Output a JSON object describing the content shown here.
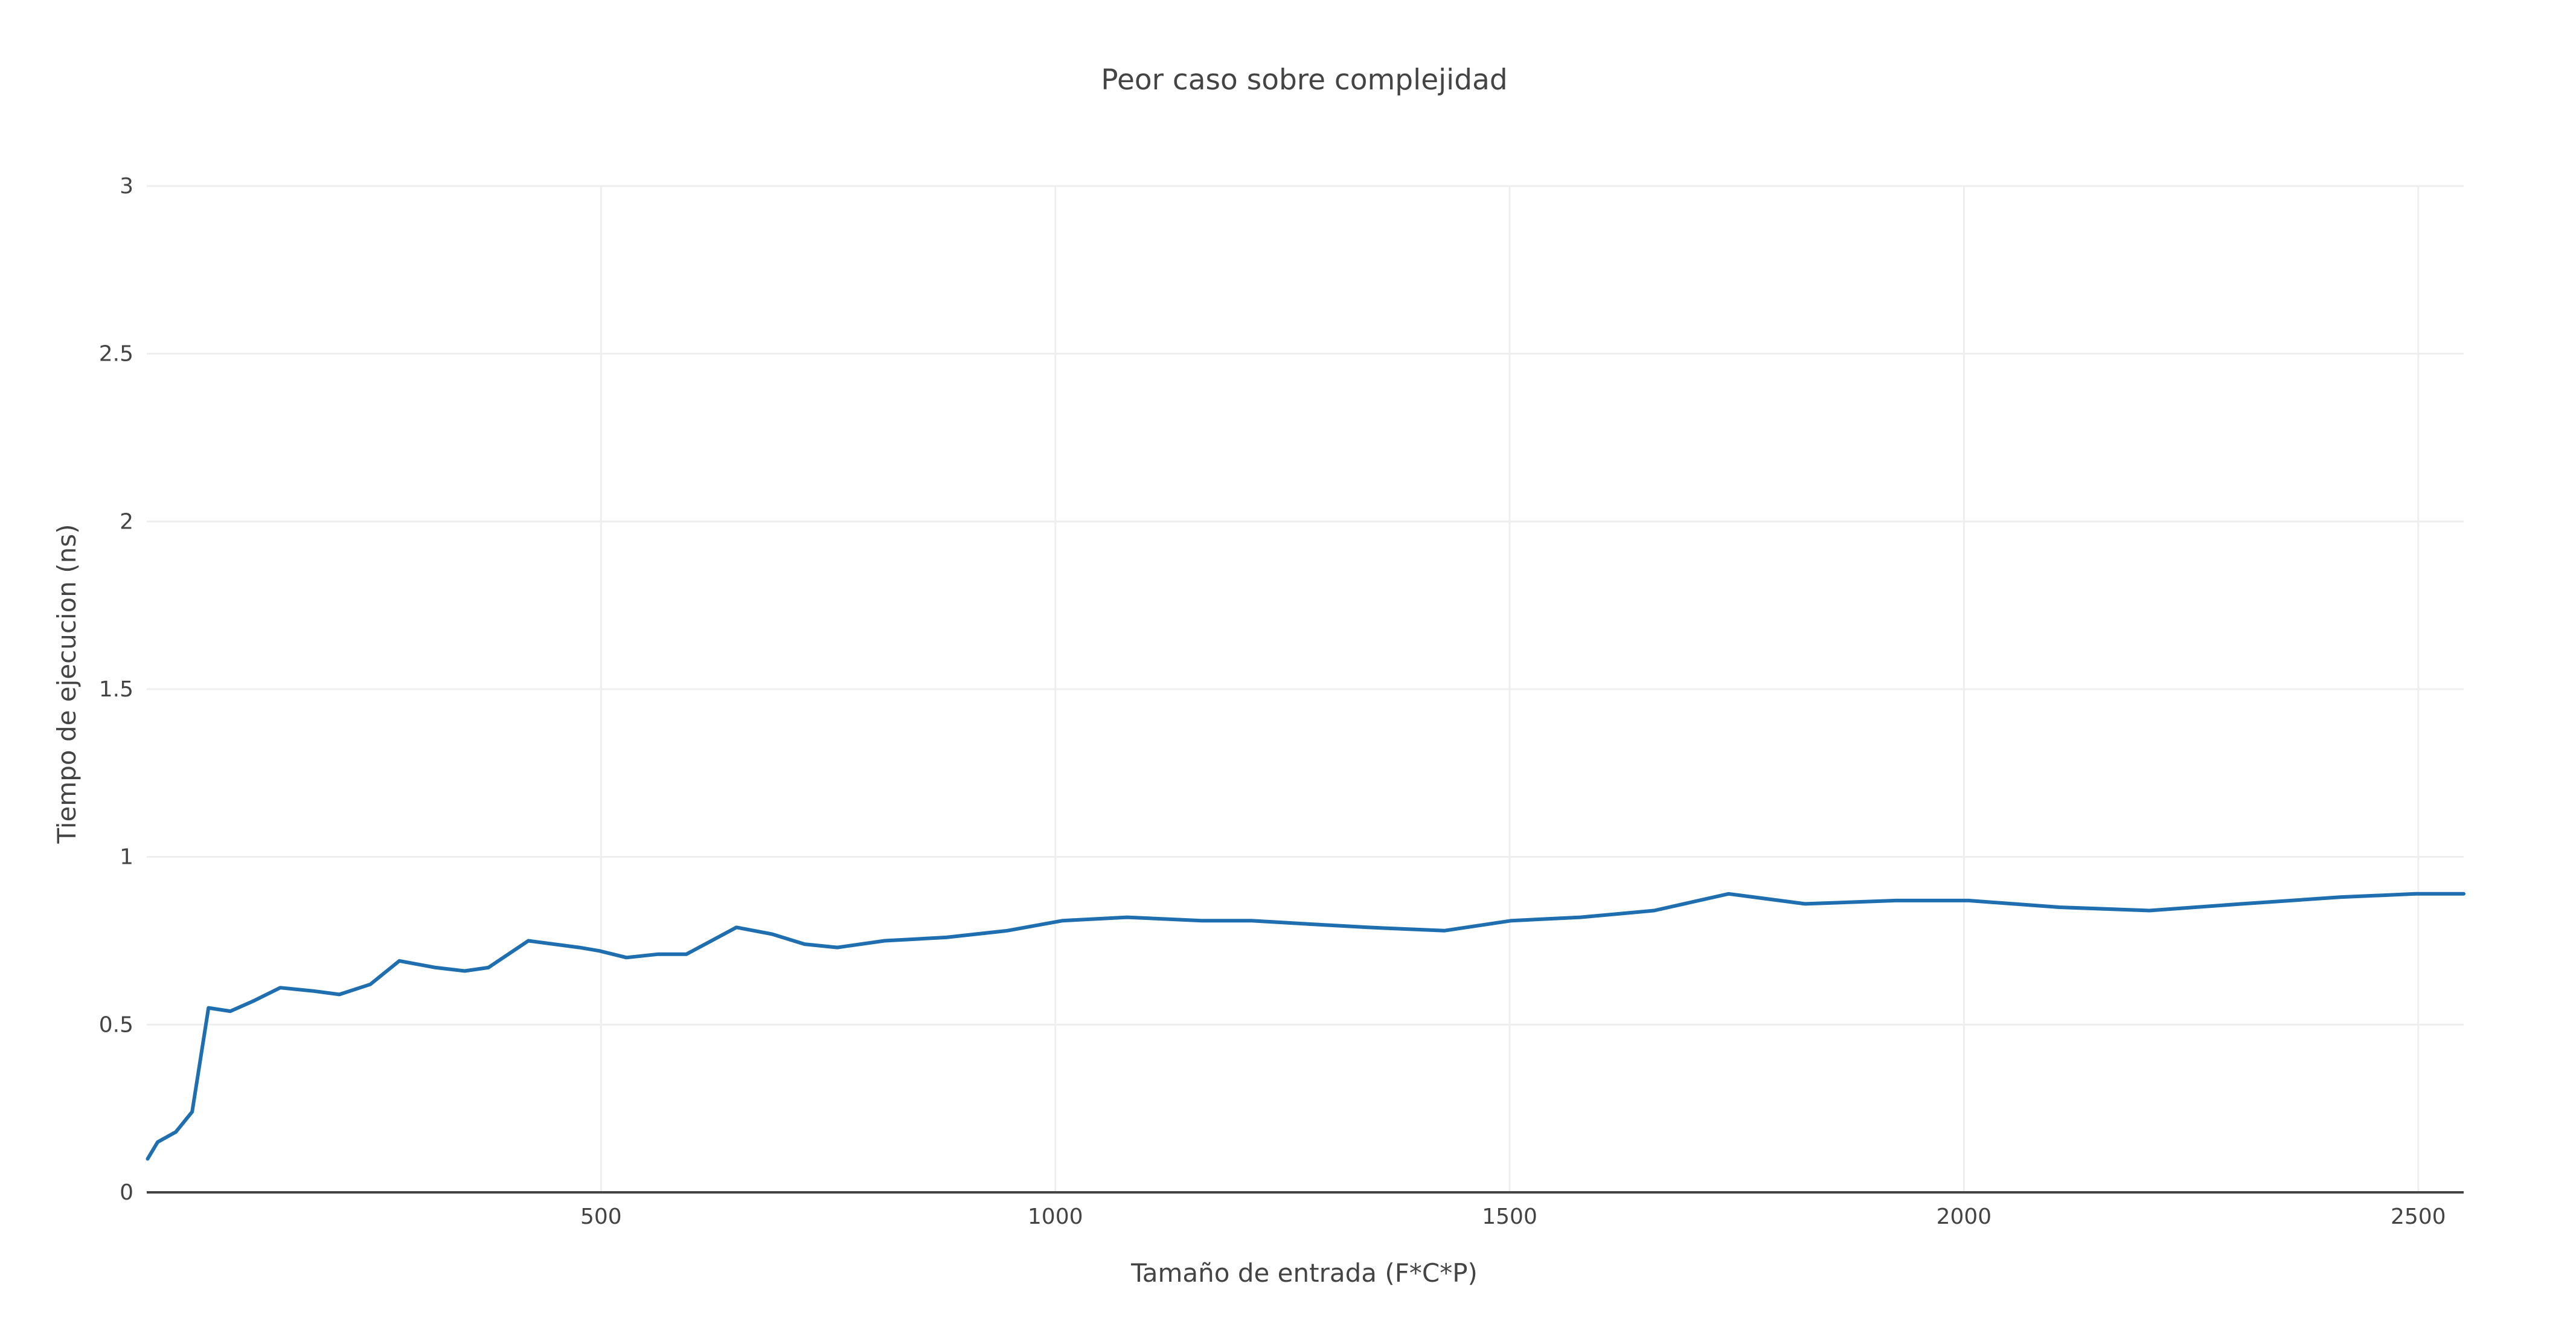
{
  "chart_data": {
    "type": "line",
    "title": "Peor caso sobre complejidad",
    "xlabel": "Tamaño de entrada (F*C*P)",
    "ylabel": "Tiempo de ejecucion (ns)",
    "xlim": [
      0,
      2550
    ],
    "ylim": [
      0,
      3
    ],
    "x_ticks": [
      500,
      1000,
      1500,
      2000,
      2500
    ],
    "x_tick_labels": [
      "500",
      "1000",
      "1500",
      "2000",
      "2500"
    ],
    "y_ticks": [
      0,
      0.5,
      1,
      1.5,
      2,
      2.5,
      3
    ],
    "y_tick_labels": [
      "0",
      "0.5",
      "1",
      "1.5",
      "2",
      "2.5",
      "3"
    ],
    "grid": true,
    "legend": "none",
    "color": "#1f6fb0",
    "series": [
      {
        "x": [
          1,
          12,
          32,
          50,
          68,
          92,
          117,
          147,
          184,
          212,
          246,
          278,
          318,
          350,
          376,
          420,
          476,
          498,
          528,
          563,
          594,
          649,
          688,
          724,
          760,
          812,
          880,
          947,
          1008,
          1079,
          1161,
          1216,
          1278,
          1344,
          1428,
          1502,
          1578,
          1659,
          1741,
          1825,
          1925,
          2005,
          2105,
          2204,
          2306,
          2414,
          2497,
          2550
        ],
        "y": [
          0.1,
          0.15,
          0.18,
          0.24,
          0.55,
          0.54,
          0.57,
          0.61,
          0.6,
          0.59,
          0.62,
          0.69,
          0.67,
          0.66,
          0.67,
          0.75,
          0.73,
          0.72,
          0.7,
          0.71,
          0.71,
          0.79,
          0.77,
          0.74,
          0.73,
          0.75,
          0.76,
          0.78,
          0.81,
          0.82,
          0.81,
          0.81,
          0.8,
          0.79,
          0.78,
          0.81,
          0.82,
          0.84,
          0.89,
          0.86,
          0.87,
          0.87,
          0.85,
          0.84,
          0.86,
          0.88,
          0.89,
          0.89
        ]
      }
    ]
  }
}
